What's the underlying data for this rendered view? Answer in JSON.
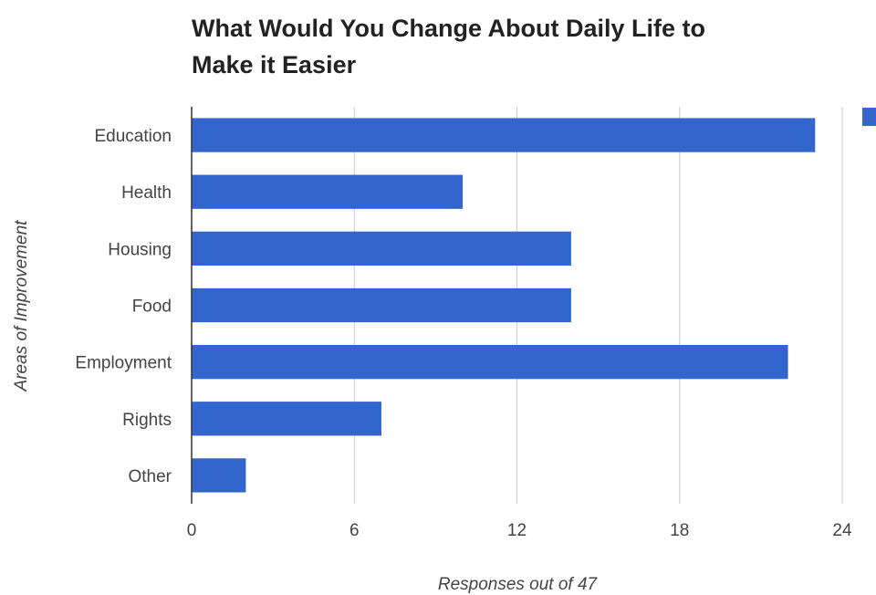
{
  "chart_data": {
    "type": "bar",
    "orientation": "horizontal",
    "title_lines": [
      "What Would You Change About Daily Life to",
      "Make it Easier"
    ],
    "xlabel": "Responses out of 47",
    "ylabel": "Areas of Improvement",
    "categories": [
      "Education",
      "Health",
      "Housing",
      "Food",
      "Employment",
      "Rights",
      "Other"
    ],
    "values": [
      23,
      10,
      14,
      14,
      22,
      7,
      2
    ],
    "x_ticks": [
      0,
      6,
      12,
      18,
      24
    ],
    "xlim": [
      0,
      24
    ],
    "grid": true,
    "legend": "right (cropped)",
    "bar_color": "#3366cc"
  }
}
